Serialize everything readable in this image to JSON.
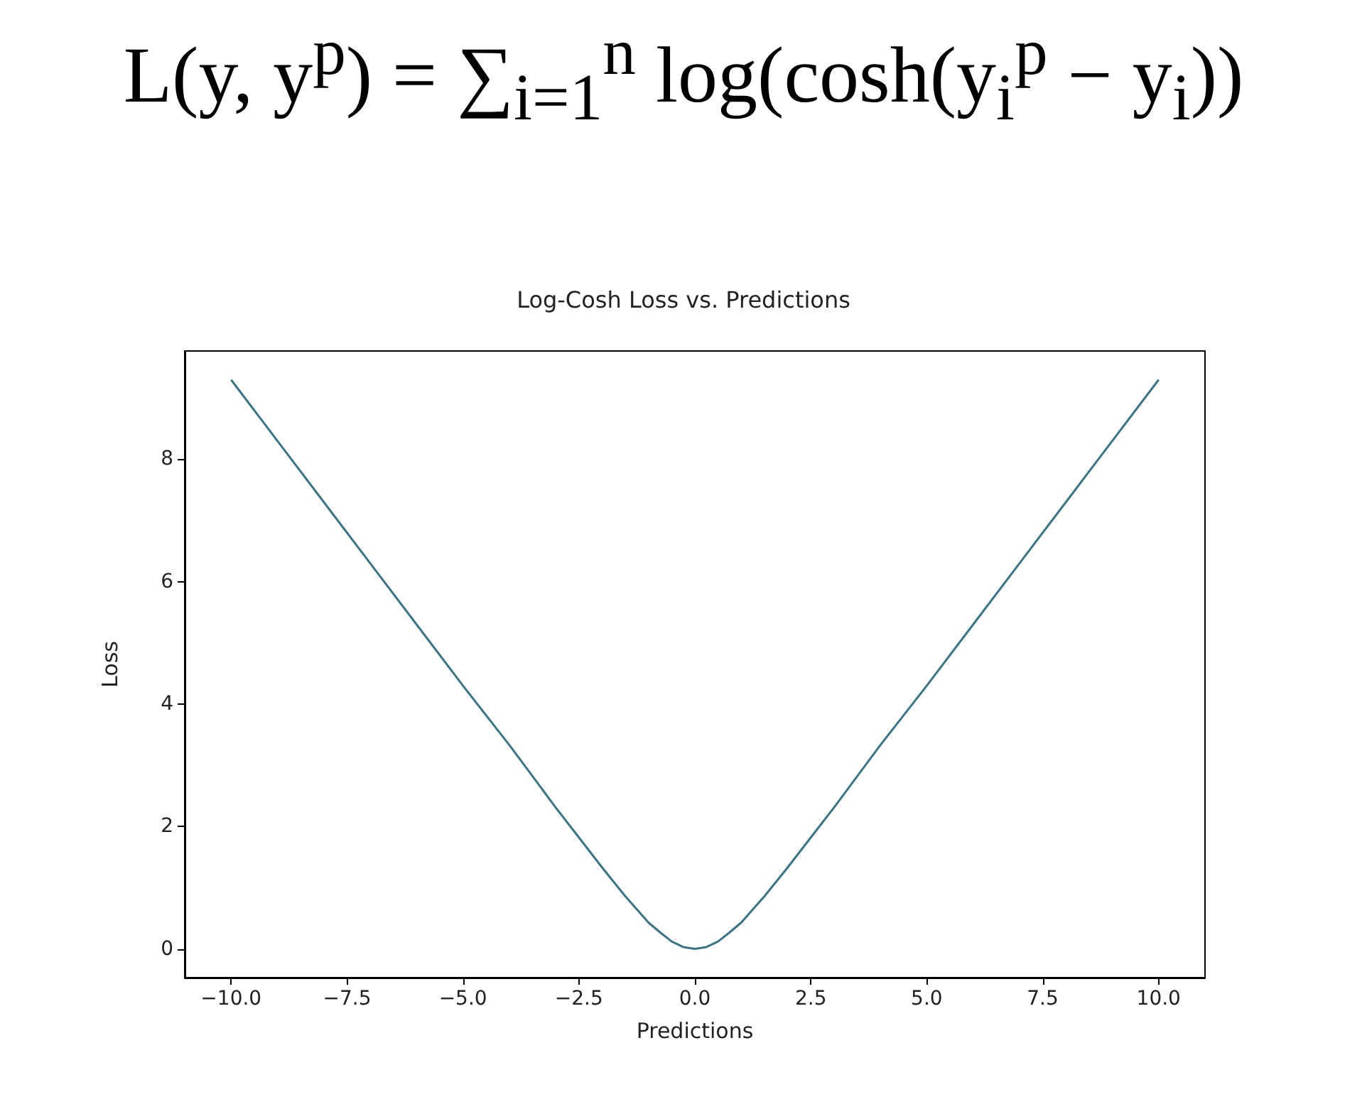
{
  "chart_data": {
    "type": "line",
    "title": "Log-Cosh Loss vs. Predictions",
    "xlabel": "Predictions",
    "ylabel": "Loss",
    "annotations": [
      "L(y, y$^{p}$) = ∑$_{i=1}$$^{n}$ log(cosh(y$_{i}$$^{p}$ − y$_{i}$))"
    ],
    "x": [
      -10,
      -9,
      -8,
      -7,
      -6,
      -5,
      -4,
      -3,
      -2.5,
      -2,
      -1.5,
      -1,
      -0.75,
      -0.5,
      -0.25,
      0,
      0.25,
      0.5,
      0.75,
      1,
      1.5,
      2,
      2.5,
      3,
      4,
      5,
      6,
      7,
      8,
      9,
      10
    ],
    "series": [
      {
        "color": "#3b7585",
        "values": [
          9.3,
          8.3,
          7.3,
          6.3,
          5.3,
          4.3,
          3.33,
          2.31,
          1.82,
          1.33,
          0.86,
          0.43,
          0.27,
          0.12,
          0.03,
          0,
          0.03,
          0.12,
          0.27,
          0.43,
          0.86,
          1.33,
          1.82,
          2.31,
          3.33,
          4.3,
          5.3,
          6.3,
          7.3,
          8.3,
          9.3
        ]
      }
    ],
    "xlim": [
      -11,
      11
    ],
    "ylim": [
      -0.47,
      9.77
    ],
    "xticks": [
      {
        "value": -10,
        "label": "−10.0"
      },
      {
        "value": -7.5,
        "label": "−7.5"
      },
      {
        "value": -5,
        "label": "−5.0"
      },
      {
        "value": -2.5,
        "label": "−2.5"
      },
      {
        "value": 0,
        "label": "0.0"
      },
      {
        "value": 2.5,
        "label": "2.5"
      },
      {
        "value": 5,
        "label": "5.0"
      },
      {
        "value": 7.5,
        "label": "7.5"
      },
      {
        "value": 10,
        "label": "10.0"
      }
    ],
    "yticks": [
      0,
      2,
      4,
      6,
      8
    ],
    "grid": false,
    "marker": "none",
    "line_style": "solid"
  }
}
